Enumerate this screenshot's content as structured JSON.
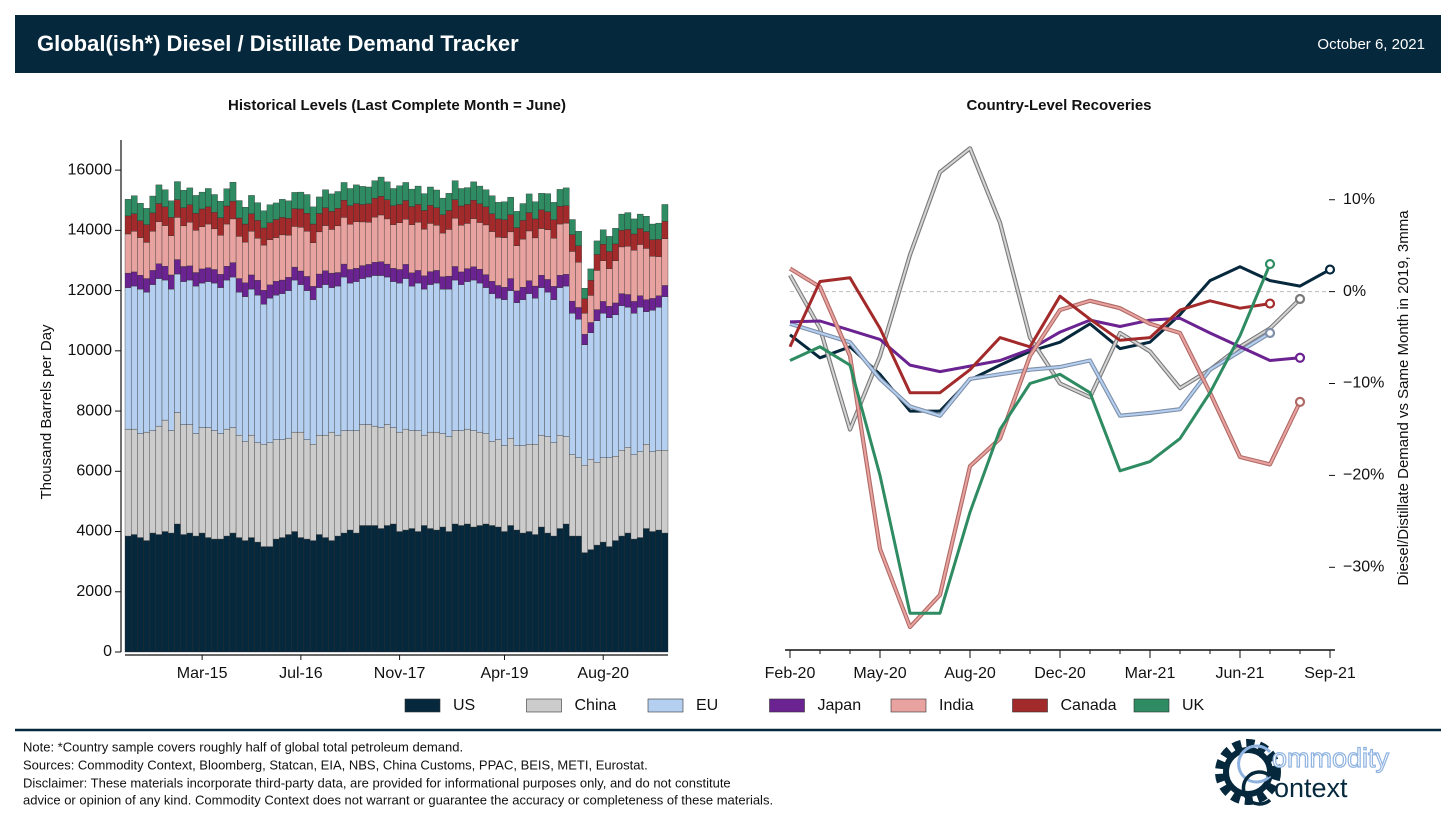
{
  "header": {
    "title": "Global(ish*) Diesel / Distillate Demand Tracker",
    "date": "October 6, 2021"
  },
  "chart_data": [
    {
      "type": "bar",
      "stacked": true,
      "title": "Historical Levels (Last Complete Month = June)",
      "y_label": "Thousand Barrels per Day",
      "categories": [
        null,
        null,
        null,
        null,
        null,
        null,
        null,
        null,
        null,
        null,
        null,
        null,
        "Mar-15",
        null,
        null,
        null,
        null,
        null,
        null,
        null,
        null,
        null,
        null,
        null,
        null,
        null,
        null,
        null,
        "Jul-16",
        null,
        null,
        null,
        null,
        null,
        null,
        null,
        null,
        null,
        null,
        null,
        null,
        null,
        null,
        null,
        "Nov-17",
        null,
        null,
        null,
        null,
        null,
        null,
        null,
        null,
        null,
        null,
        null,
        null,
        null,
        null,
        null,
        null,
        "Apr-19",
        null,
        null,
        null,
        null,
        null,
        null,
        null,
        null,
        null,
        null,
        null,
        null,
        null,
        null,
        null,
        "Aug-20",
        null,
        null,
        null,
        null,
        null,
        null,
        null,
        null,
        null,
        null
      ],
      "series": [
        {
          "name": "US",
          "color": "#06283d",
          "values": [
            3850,
            3900,
            3800,
            3700,
            3950,
            3900,
            4000,
            3950,
            4250,
            3900,
            3950,
            3850,
            3950,
            3800,
            3750,
            3750,
            3850,
            3950,
            3800,
            3700,
            3800,
            3650,
            3500,
            3500,
            3750,
            3800,
            3900,
            4000,
            3800,
            3750,
            3700,
            3900,
            3800,
            3700,
            3850,
            3950,
            4050,
            3950,
            4200,
            4200,
            4200,
            4100,
            4200,
            4250,
            4000,
            4050,
            4100,
            4000,
            4200,
            4100,
            4050,
            4150,
            4000,
            4250,
            4200,
            4250,
            4150,
            4200,
            4250,
            4200,
            4150,
            4000,
            4200,
            4050,
            3950,
            4000,
            3900,
            4150,
            3950,
            3850,
            4100,
            4250,
            3850,
            3850,
            3300,
            3400,
            3550,
            3650,
            3500,
            3700,
            3850,
            3950,
            3750,
            3800,
            4100,
            4000,
            4050,
            3950
          ]
        },
        {
          "name": "China",
          "color": "#cccccc",
          "values": [
            3550,
            3500,
            3450,
            3600,
            3400,
            3600,
            3700,
            3400,
            3700,
            3650,
            3600,
            3400,
            3500,
            3650,
            3600,
            3500,
            3550,
            3500,
            3400,
            3300,
            3400,
            3300,
            3400,
            3450,
            3300,
            3250,
            3200,
            3300,
            3500,
            3300,
            3200,
            3300,
            3400,
            3600,
            3350,
            3400,
            3300,
            3400,
            3350,
            3350,
            3300,
            3350,
            3350,
            3200,
            3300,
            3350,
            3250,
            3350,
            3000,
            3200,
            3250,
            3100,
            3150,
            3100,
            3150,
            3150,
            3200,
            3100,
            3000,
            2800,
            2900,
            2850,
            2900,
            2800,
            2900,
            2900,
            3000,
            3050,
            3200,
            3100,
            3100,
            2900,
            2700,
            2600,
            2900,
            3000,
            2750,
            2800,
            2950,
            2800,
            2850,
            2850,
            2800,
            2850,
            2800,
            2650,
            2650,
            2750
          ]
        },
        {
          "name": "EU",
          "color": "#b4cff0",
          "values": [
            4700,
            4750,
            4800,
            4650,
            4850,
            4900,
            4650,
            4700,
            4600,
            4750,
            4800,
            4900,
            4800,
            4850,
            4900,
            4850,
            4950,
            5000,
            4750,
            4800,
            4850,
            4900,
            4650,
            4800,
            4800,
            4850,
            4900,
            5050,
            4900,
            4950,
            4800,
            4900,
            5000,
            4800,
            4950,
            5100,
            4900,
            4950,
            4850,
            4900,
            5000,
            5050,
            4900,
            4850,
            4950,
            5000,
            4800,
            4900,
            4850,
            4900,
            4950,
            4800,
            4900,
            5000,
            4850,
            4900,
            5000,
            4950,
            4850,
            4900,
            4700,
            4850,
            4900,
            4750,
            4850,
            5000,
            4850,
            4900,
            4800,
            4750,
            4900,
            5000,
            4700,
            4600,
            4000,
            4200,
            4700,
            4800,
            4650,
            4700,
            4800,
            4650,
            4700,
            4800,
            4400,
            4700,
            4750,
            5100
          ]
        },
        {
          "name": "Japan",
          "color": "#6a2390",
          "values": [
            480,
            470,
            460,
            450,
            470,
            490,
            460,
            470,
            480,
            500,
            470,
            450,
            470,
            460,
            450,
            440,
            460,
            480,
            450,
            460,
            470,
            490,
            460,
            440,
            460,
            450,
            440,
            430,
            450,
            470,
            440,
            450,
            460,
            480,
            450,
            430,
            450,
            440,
            430,
            420,
            440,
            460,
            430,
            440,
            450,
            470,
            440,
            420,
            440,
            430,
            420,
            410,
            430,
            450,
            420,
            430,
            440,
            460,
            430,
            410,
            420,
            410,
            400,
            390,
            410,
            430,
            400,
            410,
            420,
            440,
            410,
            390,
            400,
            390,
            350,
            340,
            370,
            390,
            380,
            390,
            400,
            420,
            390,
            380,
            400,
            390,
            380,
            370
          ]
        },
        {
          "name": "India",
          "color": "#e8a3a0",
          "values": [
            1300,
            1350,
            1250,
            1200,
            1300,
            1400,
            1350,
            1300,
            1400,
            1350,
            1450,
            1400,
            1400,
            1450,
            1350,
            1300,
            1400,
            1450,
            1400,
            1350,
            1450,
            1400,
            1500,
            1500,
            1450,
            1500,
            1400,
            1350,
            1450,
            1500,
            1450,
            1400,
            1500,
            1450,
            1550,
            1550,
            1500,
            1550,
            1450,
            1400,
            1500,
            1550,
            1500,
            1450,
            1550,
            1500,
            1600,
            1600,
            1550,
            1600,
            1500,
            1450,
            1550,
            1600,
            1550,
            1500,
            1600,
            1550,
            1650,
            1650,
            1600,
            1650,
            1550,
            1500,
            1600,
            1650,
            1600,
            1550,
            1650,
            1600,
            1700,
            1700,
            1650,
            1500,
            700,
            900,
            1300,
            1350,
            1250,
            1400,
            1550,
            1600,
            1700,
            1700,
            1700,
            1400,
            1300,
            1550
          ]
        },
        {
          "name": "Canada",
          "color": "#a32a2a",
          "values": [
            600,
            580,
            560,
            590,
            610,
            600,
            620,
            610,
            590,
            600,
            580,
            570,
            590,
            570,
            550,
            580,
            600,
            590,
            610,
            600,
            580,
            590,
            570,
            560,
            600,
            580,
            560,
            590,
            610,
            600,
            620,
            610,
            590,
            600,
            580,
            570,
            620,
            600,
            580,
            610,
            630,
            620,
            640,
            630,
            610,
            620,
            600,
            590,
            620,
            600,
            580,
            610,
            630,
            620,
            640,
            630,
            610,
            620,
            600,
            590,
            610,
            590,
            570,
            600,
            620,
            610,
            630,
            620,
            600,
            610,
            590,
            580,
            560,
            550,
            480,
            500,
            530,
            550,
            570,
            560,
            550,
            560,
            540,
            530,
            560,
            550,
            570,
            580
          ]
        },
        {
          "name": "UK",
          "color": "#2e8b62",
          "values": [
            550,
            600,
            580,
            540,
            560,
            620,
            570,
            550,
            600,
            580,
            560,
            590,
            560,
            610,
            590,
            550,
            570,
            630,
            580,
            560,
            610,
            590,
            570,
            600,
            550,
            600,
            580,
            540,
            560,
            620,
            570,
            550,
            600,
            580,
            560,
            590,
            570,
            620,
            600,
            560,
            580,
            640,
            590,
            570,
            620,
            600,
            580,
            610,
            560,
            610,
            590,
            550,
            570,
            630,
            580,
            560,
            610,
            590,
            570,
            600,
            550,
            600,
            580,
            540,
            560,
            620,
            570,
            550,
            600,
            580,
            560,
            590,
            500,
            480,
            350,
            380,
            450,
            480,
            500,
            520,
            540,
            560,
            500,
            480,
            510,
            520,
            540,
            560
          ]
        }
      ],
      "ylim": [
        0,
        17000
      ],
      "yticks": [
        0,
        2000,
        4000,
        6000,
        8000,
        10000,
        12000,
        14000,
        16000
      ],
      "grid": false
    },
    {
      "type": "line",
      "title": "Country-Level Recoveries",
      "y_label": "Diesel/Distillate Demand vs Same Month in 2019, 3mma",
      "y_axis_side": "right",
      "zero_line": true,
      "end_markers": true,
      "categories": [
        "Feb-20",
        null,
        null,
        "May-20",
        null,
        null,
        "Aug-20",
        null,
        null,
        "Dec-20",
        null,
        null,
        "Mar-21",
        null,
        null,
        "Jun-21",
        null,
        null,
        "Sep-21"
      ],
      "series": [
        {
          "color": "#06283d",
          "values": [
            -4.7,
            -7.2,
            -6,
            -9,
            -13,
            -13,
            -9.6,
            -8,
            -6.5,
            -5.5,
            -3.5,
            -6.2,
            -5.5,
            -2.5,
            1.2,
            2.7,
            1.2,
            0.6,
            2.4
          ]
        },
        {
          "color": "#d4d4d4",
          "edge_color": "#7a7a7a",
          "values": [
            1.8,
            -4,
            -15,
            -7,
            4,
            13,
            15.6,
            7.5,
            -5,
            -10,
            -11.5,
            -4.5,
            -6.5,
            -10.5,
            -8.5,
            -6,
            -4,
            -0.8,
            null
          ]
        },
        {
          "color": "#b4cff0",
          "edge_color": "#7f8fa8",
          "values": [
            -3.5,
            -4.5,
            -5.5,
            -9.5,
            -12.5,
            -13.5,
            -9.5,
            -9,
            -8.5,
            -8.2,
            -7.5,
            -13.5,
            -13.2,
            -12.8,
            -8.5,
            -6.5,
            -4.5,
            null,
            null
          ]
        },
        {
          "color": "#6a2390",
          "values": [
            -3.3,
            -3.2,
            -4.2,
            -5.2,
            -8,
            -8.7,
            -8.1,
            -7.5,
            -6.3,
            -4.4,
            -3.1,
            -3.8,
            -3.1,
            -2.9,
            -4.5,
            -6,
            -7.5,
            -7.2,
            null
          ]
        },
        {
          "color": "#e8a3a0",
          "edge_color": "#b06a66",
          "values": [
            2.5,
            0.5,
            -7,
            -28,
            -36.5,
            -33,
            -19,
            -16,
            -7,
            -2,
            -1,
            -1.8,
            -3.5,
            -4.5,
            -11,
            -18,
            -18.8,
            -12,
            null
          ]
        },
        {
          "color": "#a32a2a",
          "values": [
            -6,
            1.1,
            1.5,
            -4,
            -11,
            -11,
            -8.5,
            -5,
            -6,
            -0.5,
            -3,
            -5.3,
            -5,
            -2,
            -1,
            -1.8,
            -1.3,
            null,
            null
          ]
        },
        {
          "color": "#2e8b62",
          "values": [
            -7.5,
            -6,
            -8,
            -20,
            -35,
            -35,
            -24,
            -15,
            -10,
            -9,
            -11,
            -19.5,
            -18.5,
            -16,
            -11,
            -4.8,
            3,
            null,
            null
          ]
        }
      ],
      "ylim": [
        -39,
        16.5
      ],
      "yticks": [
        {
          "value": 10,
          "label": "10%"
        },
        {
          "value": 0,
          "label": "0%"
        },
        {
          "value": -10,
          "label": "−10%"
        },
        {
          "value": -20,
          "label": "−20%"
        },
        {
          "value": -30,
          "label": "−30%"
        }
      ]
    }
  ],
  "footer": {
    "lines": [
      "Note: *Country sample covers roughly half of global total petroleum demand.",
      "Sources: Commodity Context, Bloomberg, Statcan, EIA, NBS, China Customs, PPAC, BEIS, METI, Eurostat.",
      "Disclaimer: These materials incorporate third-party data, are provided for informational purposes only, and do not constitute",
      "advice or opinion of any kind. Commodity Context does not warrant or guarantee the accuracy or completeness of these materials."
    ],
    "logo": [
      "ommodity",
      "ontext"
    ]
  }
}
